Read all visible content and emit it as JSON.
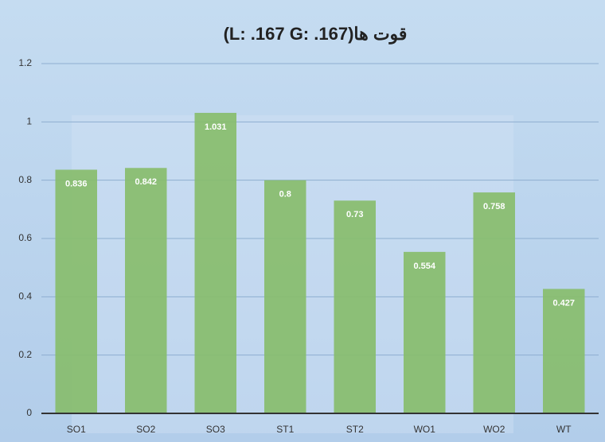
{
  "chart_data": {
    "type": "bar",
    "title": "(L: .167 G: .167)قوت ها",
    "categories": [
      "SO1",
      "SO2",
      "SO3",
      "ST1",
      "ST2",
      "WO1",
      "WO2",
      "WT"
    ],
    "values": [
      0.836,
      0.842,
      1.031,
      0.8,
      0.73,
      0.554,
      0.758,
      0.427
    ],
    "color": "#88bd6c",
    "ylim": [
      0,
      1.2
    ],
    "yticks": [
      0,
      0.2,
      0.4,
      0.6,
      0.8,
      1,
      1.2
    ],
    "grid": true
  }
}
